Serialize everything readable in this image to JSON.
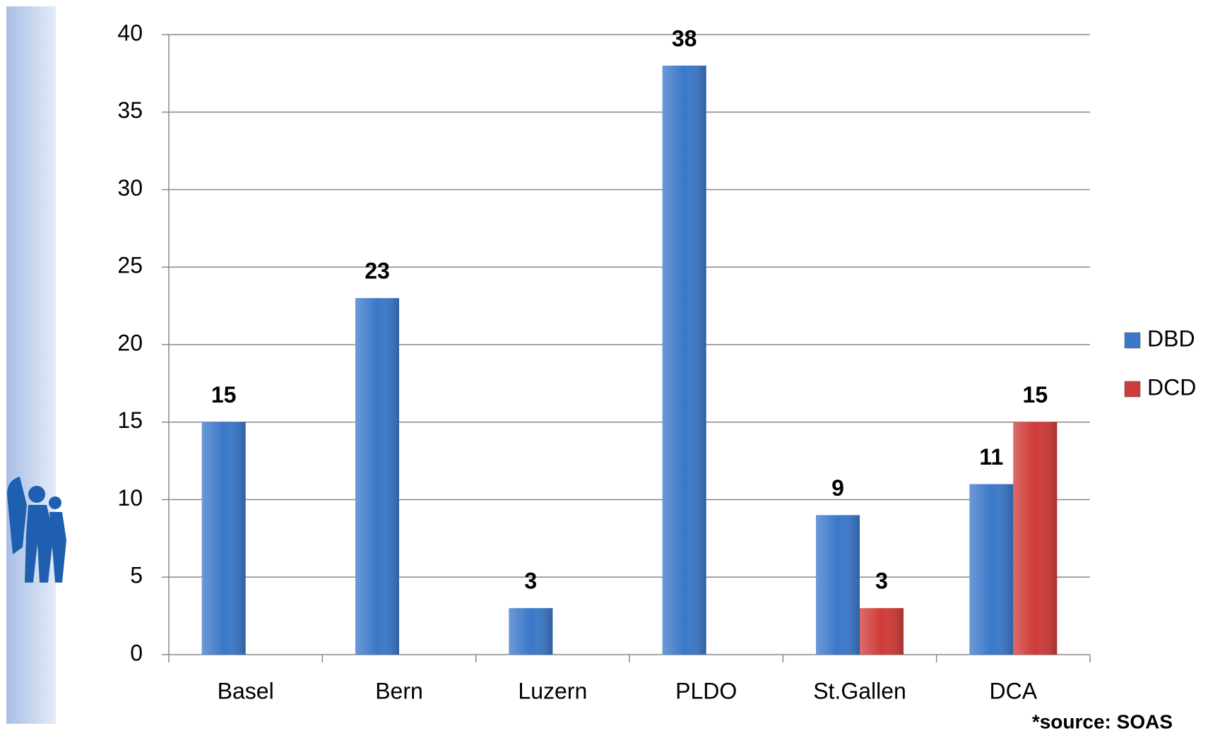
{
  "chart_data": {
    "type": "bar",
    "categories": [
      "Basel",
      "Bern",
      "Luzern",
      "PLDO",
      "St.Gallen",
      "DCA"
    ],
    "series": [
      {
        "name": "DBD",
        "color": "#3b78c9",
        "values": [
          15,
          23,
          3,
          38,
          9,
          11
        ]
      },
      {
        "name": "DCD",
        "color": "#cf3b38",
        "values": [
          null,
          null,
          null,
          null,
          3,
          15
        ]
      }
    ],
    "ylim": [
      0,
      40
    ],
    "yticks": [
      0,
      5,
      10,
      15,
      20,
      25,
      30,
      35,
      40
    ],
    "grid": true,
    "legend": "right",
    "source": "*source: SOAS"
  }
}
